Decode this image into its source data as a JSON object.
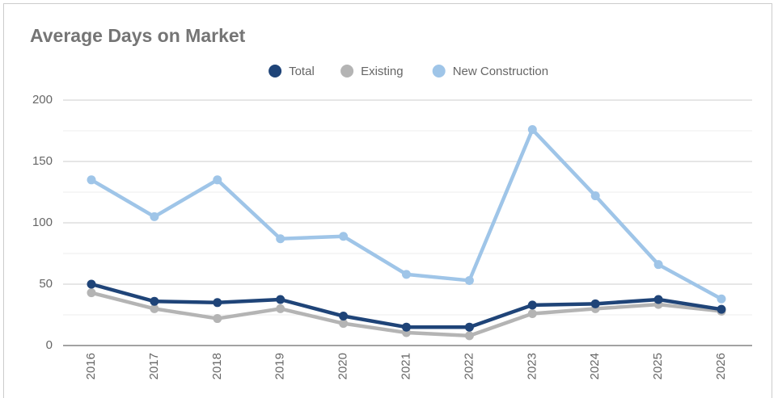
{
  "chart_data": {
    "type": "line",
    "title": "Average Days on Market",
    "categories": [
      "2016",
      "2017",
      "2018",
      "2019",
      "2020",
      "2021",
      "2022",
      "2023",
      "2024",
      "2025",
      "2026"
    ],
    "series": [
      {
        "name": "Total",
        "color": "#1f4478",
        "values": [
          50,
          36,
          35,
          37.5,
          24,
          15,
          15,
          33,
          34,
          37.5,
          29.5
        ]
      },
      {
        "name": "Existing",
        "color": "#b4b4b4",
        "values": [
          43,
          30,
          22,
          30,
          18,
          10.5,
          8,
          26,
          30,
          33.5,
          28
        ]
      },
      {
        "name": "New Construction",
        "color": "#9fc5e8",
        "values": [
          135,
          105,
          135,
          87,
          89,
          58,
          53,
          176,
          122,
          66,
          38
        ]
      }
    ],
    "ylim": [
      0,
      200
    ],
    "yticks": [
      0,
      50,
      100,
      150,
      200
    ],
    "minor_yticks": [
      25,
      75,
      125,
      175
    ],
    "grid": true,
    "legend": "top"
  }
}
